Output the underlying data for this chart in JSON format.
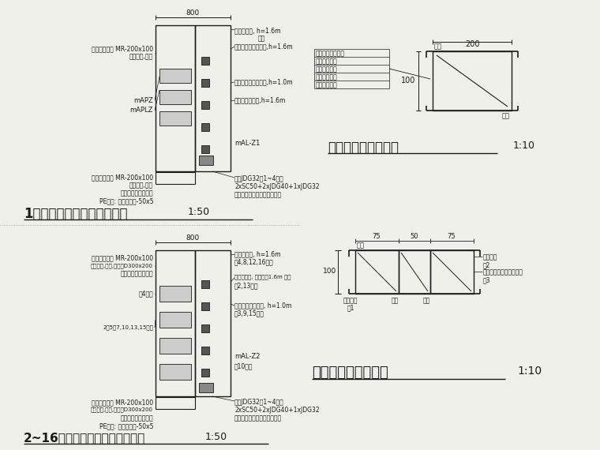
{
  "bg_color": "#f0f0eb",
  "line_color": "#1a1a1a",
  "text_color": "#1a1a1a",
  "section1_title": "1层电井主要设备布置示意图",
  "section1_scale": "1:50",
  "section2_title": "2~16层电井主要设备布置示意图",
  "section2_scale": "1:50",
  "strong_title": "强电槽盒布置示意图",
  "strong_scale": "1:10",
  "weak_title": "弱电槽盒布置示意图",
  "weak_scale": "1:10"
}
